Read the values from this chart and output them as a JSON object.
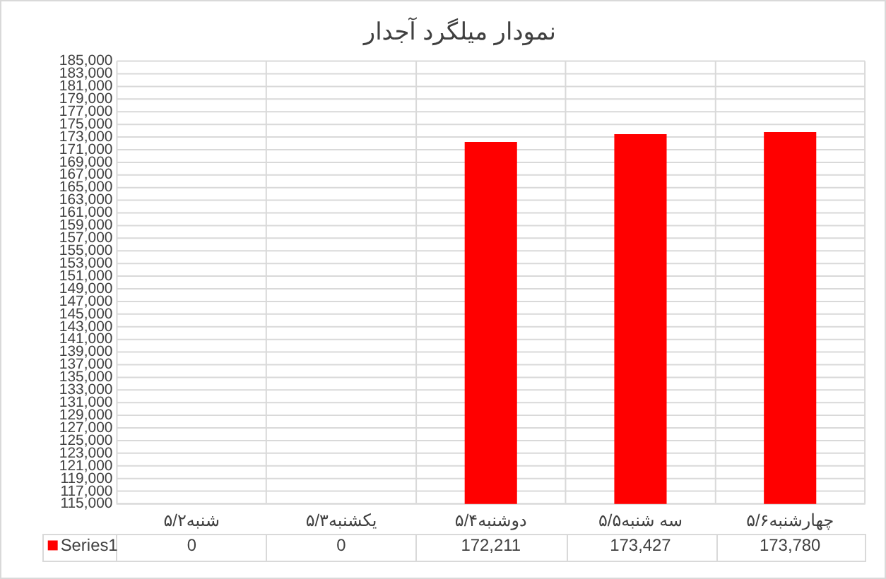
{
  "chart_data": {
    "type": "bar",
    "title": "نمودار میلگرد آجدار",
    "categories": [
      "شنبه۵/۲",
      "یکشنبه۵/۳",
      "دوشنبه۵/۴",
      "سه شنبه۵/۵",
      "چهارشنبه۵/۶"
    ],
    "series": [
      {
        "name": "Series1",
        "color": "#ff0000",
        "values": [
          null,
          null,
          172211,
          173427,
          173780
        ],
        "value_labels": [
          "0",
          "0",
          "172,211",
          "173,427",
          "173,780"
        ]
      }
    ],
    "ylim": [
      115000,
      185000
    ],
    "yticks": [
      {
        "value": 115000,
        "label": "115,000"
      },
      {
        "value": 117000,
        "label": "117,000"
      },
      {
        "value": 119000,
        "label": "119,000"
      },
      {
        "value": 121000,
        "label": "121,000"
      },
      {
        "value": 123000,
        "label": "123,000"
      },
      {
        "value": 125000,
        "label": "125,000"
      },
      {
        "value": 127000,
        "label": "127,000"
      },
      {
        "value": 129000,
        "label": "129,000"
      },
      {
        "value": 131000,
        "label": "131,000"
      },
      {
        "value": 133000,
        "label": "133,000"
      },
      {
        "value": 135000,
        "label": "135,000"
      },
      {
        "value": 137000,
        "label": "137,000"
      },
      {
        "value": 139000,
        "label": "139,000"
      },
      {
        "value": 141000,
        "label": "141,000"
      },
      {
        "value": 143000,
        "label": "143,000"
      },
      {
        "value": 145000,
        "label": "145,000"
      },
      {
        "value": 147000,
        "label": "147,000"
      },
      {
        "value": 149000,
        "label": "149,000"
      },
      {
        "value": 151000,
        "label": "151,000"
      },
      {
        "value": 153000,
        "label": "153,000"
      },
      {
        "value": 155000,
        "label": "155,000"
      },
      {
        "value": 157000,
        "label": "157,000"
      },
      {
        "value": 159000,
        "label": "159,000"
      },
      {
        "value": 161000,
        "label": "161,000"
      },
      {
        "value": 163000,
        "label": "163,000"
      },
      {
        "value": 165000,
        "label": "165,000"
      },
      {
        "value": 167000,
        "label": "167,000"
      },
      {
        "value": 169000,
        "label": "169,000"
      },
      {
        "value": 171000,
        "label": "171,000"
      },
      {
        "value": 173000,
        "label": "173,000"
      },
      {
        "value": 175000,
        "label": "175,000"
      },
      {
        "value": 177000,
        "label": "177,000"
      },
      {
        "value": 179000,
        "label": "179,000"
      },
      {
        "value": 181000,
        "label": "181,000"
      },
      {
        "value": 183000,
        "label": "183,000"
      },
      {
        "value": 185000,
        "label": "185,000"
      }
    ],
    "grid": true
  }
}
